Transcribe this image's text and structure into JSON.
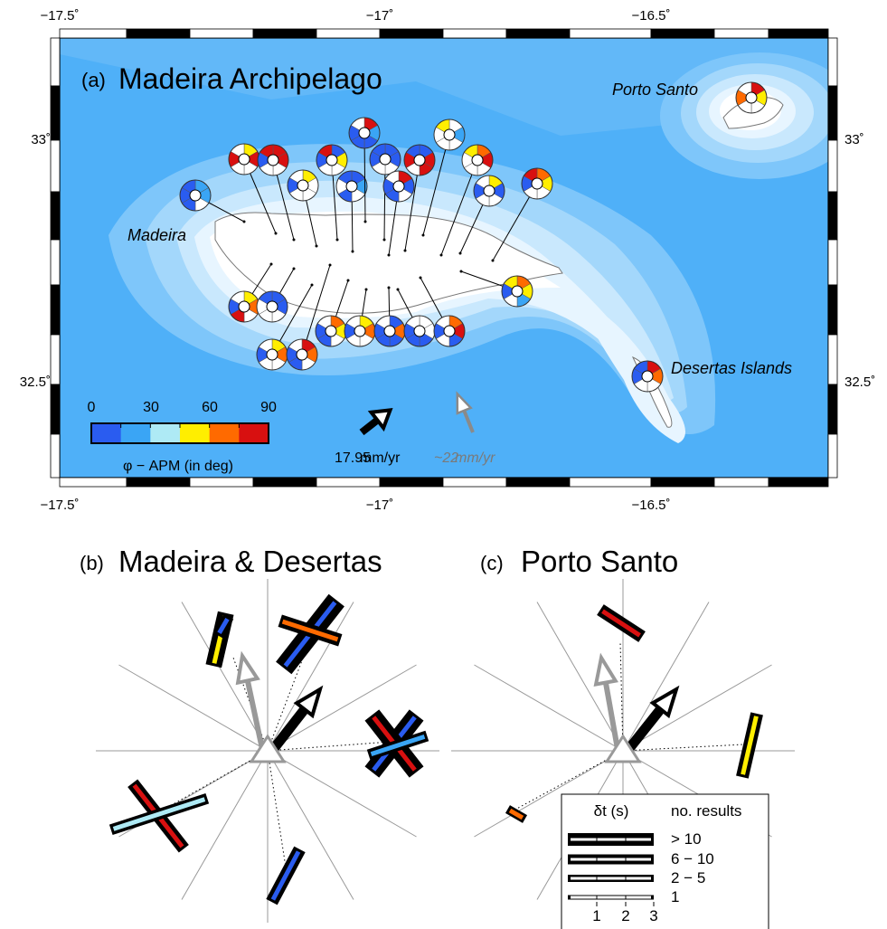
{
  "map": {
    "panel_label": "(a)",
    "title": "Madeira Archipelago",
    "lon_ticks": [
      "−17.5˚",
      "−17˚",
      "−16.5˚"
    ],
    "lat_ticks": [
      "33˚",
      "32.5˚"
    ],
    "places": {
      "madeira": "Madeira",
      "porto_santo": "Porto Santo",
      "desertas": "Desertas Islands"
    },
    "colorbar": {
      "ticks": [
        "0",
        "30",
        "60",
        "90"
      ],
      "label": "φ − APM (in deg)",
      "colors": [
        "#2a5cf0",
        "#3aa5f5",
        "#aeeaf5",
        "#ffee00",
        "#ff6a00",
        "#d81010"
      ]
    },
    "arrows": {
      "black_label": "17.95",
      "black_unit": "mm/yr",
      "grey_label": "~22",
      "grey_unit": "mm/yr"
    }
  },
  "panel_b": {
    "label": "(b)",
    "title": "Madeira & Desertas"
  },
  "panel_c": {
    "label": "(c)",
    "title": "Porto Santo",
    "legend": {
      "dt_header": "δt (s)",
      "count_header": "no. results",
      "rows": [
        "> 10",
        "6 − 10",
        "2 − 5",
        "1"
      ],
      "axis": [
        "1",
        "2",
        "3"
      ]
    }
  }
}
